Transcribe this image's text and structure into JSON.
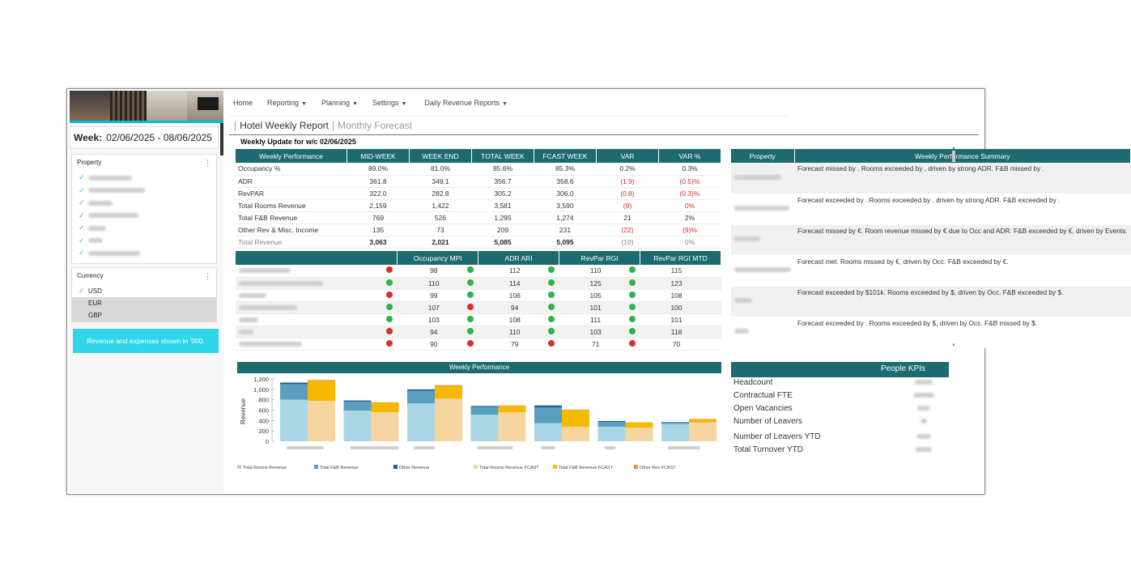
{
  "left": {
    "week_label": "Week:",
    "week_range": "02/06/2025 - 08/06/2025",
    "property_header": "Property",
    "currency_header": "Currency",
    "currencies": [
      "USD",
      "EUR",
      "GBP"
    ],
    "selected_currency": "USD",
    "note": "Revenue and expenses shown in '000."
  },
  "nav": {
    "home": "Home",
    "reporting": "Reporting",
    "planning": "Planning",
    "settings": "Settings",
    "daily": "Daily Revenue Reports"
  },
  "tabs": {
    "active": "Hotel Weekly Report",
    "inactive": "Monthly Forecast"
  },
  "subheader": "Weekly Update for w/c 02/06/2025",
  "weekly_performance": {
    "headers": [
      "Weekly Performance",
      "MID-WEEK",
      "WEEK END",
      "TOTAL WEEK",
      "FCAST WEEK",
      "VAR",
      "VAR %"
    ],
    "rows": [
      [
        "Occupancy %",
        "89.0%",
        "81.0%",
        "85.6%",
        "85.3%",
        "0.2%",
        "0.3%"
      ],
      [
        "ADR",
        "361.8",
        "349.1",
        "356.7",
        "358.6",
        "(1.9)",
        "(0.5)%"
      ],
      [
        "RevPAR",
        "322.0",
        "282.8",
        "305.2",
        "306.0",
        "(0.8)",
        "(0.3)%"
      ],
      [
        "Total Rooms Revenue",
        "2,159",
        "1,422",
        "3,581",
        "3,590",
        "(9)",
        "0%"
      ],
      [
        "Total F&B Revenue",
        "769",
        "526",
        "1,295",
        "1,274",
        "21",
        "2%"
      ],
      [
        "Other Rev & Misc. Income",
        "135",
        "73",
        "209",
        "231",
        "(22)",
        "(9)%"
      ],
      [
        "Total Revenue",
        "3,063",
        "2,021",
        "5,085",
        "5,095",
        "(10)",
        "0%"
      ]
    ]
  },
  "mpi": {
    "headers": [
      "",
      "Occupancy MPI",
      "ADR ARI",
      "RevPar RGI",
      "RevPar RGI MTD"
    ],
    "rows": [
      {
        "occ": "98",
        "occ_s": "r",
        "adr": "112",
        "adr_s": "g",
        "rgi": "110",
        "rgi_s": "g",
        "mtd": "115",
        "mtd_s": "g"
      },
      {
        "occ": "110",
        "occ_s": "g",
        "adr": "114",
        "adr_s": "g",
        "rgi": "125",
        "rgi_s": "g",
        "mtd": "123",
        "mtd_s": "g"
      },
      {
        "occ": "99",
        "occ_s": "r",
        "adr": "106",
        "adr_s": "g",
        "rgi": "105",
        "rgi_s": "g",
        "mtd": "108",
        "mtd_s": "g"
      },
      {
        "occ": "107",
        "occ_s": "g",
        "adr": "94",
        "adr_s": "r",
        "rgi": "101",
        "rgi_s": "g",
        "mtd": "100",
        "mtd_s": "g"
      },
      {
        "occ": "103",
        "occ_s": "g",
        "adr": "108",
        "adr_s": "g",
        "rgi": "111",
        "rgi_s": "g",
        "mtd": "101",
        "mtd_s": "g"
      },
      {
        "occ": "94",
        "occ_s": "r",
        "adr": "110",
        "adr_s": "g",
        "rgi": "103",
        "rgi_s": "g",
        "mtd": "118",
        "mtd_s": "g"
      },
      {
        "occ": "90",
        "occ_s": "r",
        "adr": "79",
        "adr_s": "r",
        "rgi": "71",
        "rgi_s": "r",
        "mtd": "70",
        "mtd_s": "r"
      }
    ]
  },
  "summary": {
    "headers": [
      "Property",
      "Weekly Performance Summary"
    ],
    "rows": [
      "Forecast missed by . Rooms exceeded by , driven by strong ADR. F&B missed by .",
      "Forecast exceeded by . Rooms exceeded by , driven by strong ADR. F&B exceeded by .",
      "Forecast missed by €. Room revenue missed by € due to Occ and ADR. F&B exceeded by €, driven by Events.",
      "Forecast met. Rooms missed by €, driven by Occ. F&B exceeded by €.",
      "Forecast exceeded by $101k. Rooms exceeded by $, driven by Occ. F&B exceeded by $.",
      "Forecast exceeded by . Rooms exceeded by $, driven by Occ. F&B missed by $."
    ]
  },
  "chart_title": "Weekly Performance",
  "chart_data": {
    "type": "bar",
    "ylabel": "Revenue",
    "ylim": [
      0,
      1200
    ],
    "yticks": [
      "1,200",
      "1,000",
      "800",
      "600",
      "400",
      "200",
      "0"
    ],
    "groups": 7,
    "actual": [
      {
        "rooms": 800,
        "fb": 300,
        "other": 30
      },
      {
        "rooms": 590,
        "fb": 170,
        "other": 25
      },
      {
        "rooms": 730,
        "fb": 240,
        "other": 30
      },
      {
        "rooms": 510,
        "fb": 150,
        "other": 20
      },
      {
        "rooms": 350,
        "fb": 300,
        "other": 40
      },
      {
        "rooms": 280,
        "fb": 90,
        "other": 20
      },
      {
        "rooms": 330,
        "fb": 30,
        "other": 10
      }
    ],
    "forecast": [
      {
        "rooms": 780,
        "fb": 380,
        "other": 20
      },
      {
        "rooms": 560,
        "fb": 180,
        "other": 10
      },
      {
        "rooms": 820,
        "fb": 240,
        "other": 20
      },
      {
        "rooms": 560,
        "fb": 120,
        "other": 10
      },
      {
        "rooms": 280,
        "fb": 320,
        "other": 10
      },
      {
        "rooms": 260,
        "fb": 100,
        "other": 5
      },
      {
        "rooms": 360,
        "fb": 50,
        "other": 20
      }
    ],
    "legend": [
      "Total Rooms Revenue",
      "Total F&B Revenue",
      "Other Revenue",
      "Total Rooms Revenue FCAST",
      "Total F&B Revenue FCAST",
      "Other Rev FCAST"
    ],
    "colors": {
      "rooms": "#a9d6e5",
      "fb": "#5a9fc0",
      "other": "#1f5f8b",
      "rooms_f": "#f6d5a0",
      "fb_f": "#f7b800",
      "other_f": "#e69b2e"
    }
  },
  "people": {
    "title": "People KPIs",
    "rows": [
      "Headcount",
      "Contractual FTE",
      "Open Vacancies",
      "Number of Leavers",
      "Number of Leavers YTD",
      "Total Turnover YTD"
    ]
  }
}
